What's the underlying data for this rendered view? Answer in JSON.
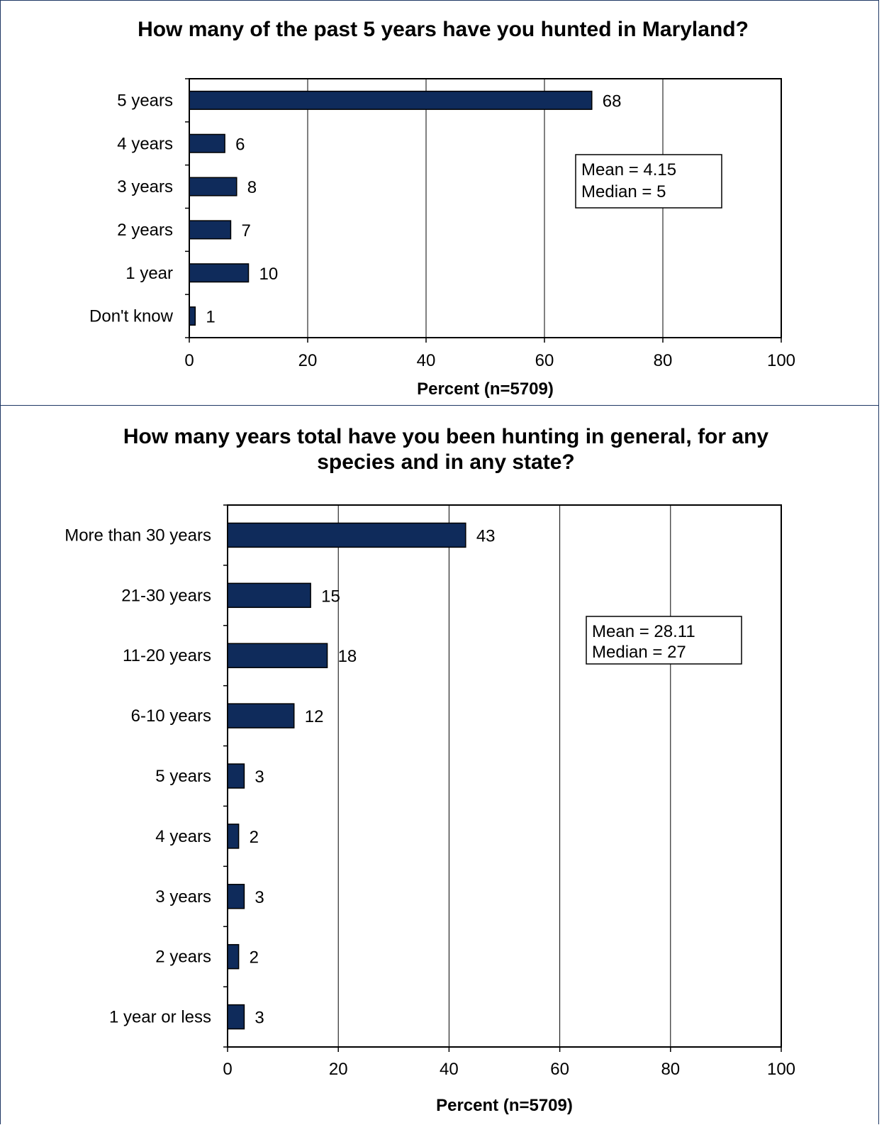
{
  "colors": {
    "bar": "#0f2b5b",
    "frame": "#1f3864"
  },
  "chart_data": [
    {
      "type": "bar",
      "orientation": "horizontal",
      "title": "How many of the past 5 years have you hunted in Maryland?",
      "categories": [
        "5 years",
        "4 years",
        "3 years",
        "2 years",
        "1 year",
        "Don't know"
      ],
      "values": [
        68,
        6,
        8,
        7,
        10,
        1
      ],
      "xlabel": "Percent (n=5709)",
      "xlim": [
        0,
        100
      ],
      "xticks": [
        "0",
        "20",
        "40",
        "60",
        "80",
        "100"
      ],
      "grid": "vertical",
      "stats": [
        "Mean = 4.15",
        "Median = 5"
      ]
    },
    {
      "type": "bar",
      "orientation": "horizontal",
      "title": [
        "How many years total have you been hunting in general, for any",
        "species and in any state?"
      ],
      "categories": [
        "More than 30 years",
        "21-30 years",
        "11-20 years",
        "6-10 years",
        "5 years",
        "4 years",
        "3 years",
        "2 years",
        "1 year or less"
      ],
      "values": [
        43,
        15,
        18,
        12,
        3,
        2,
        3,
        2,
        3
      ],
      "xlabel": "Percent (n=5709)",
      "xlim": [
        0,
        100
      ],
      "xticks": [
        "0",
        "20",
        "40",
        "60",
        "80",
        "100"
      ],
      "grid": "vertical",
      "stats": [
        "Mean = 28.11",
        "Median = 27"
      ]
    }
  ]
}
